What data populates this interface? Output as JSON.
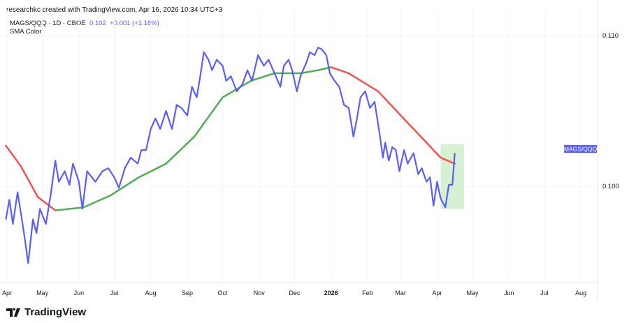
{
  "credit": "researchkc created with TradingView.com, Apr 16, 2026 10:34 UTC+3",
  "legend": {
    "symbol": "MAGS/QQQ · 1D · CBOE",
    "last": "0.102",
    "change": "+0.001 (+1.18%)",
    "indicator": "SMA Color"
  },
  "price_tag": "MAGS/QQQ",
  "brand": "TradingView",
  "colors": {
    "price": "#5b5ff5",
    "sma_up": "#4caf50",
    "sma_down": "#f05350",
    "highlight": "#d7f0d3"
  },
  "chart_data": {
    "type": "line",
    "title": "",
    "y_ticks": [
      "0.110",
      "0.100"
    ],
    "x_ticks": [
      "Apr",
      "May",
      "Jun",
      "Jul",
      "Aug",
      "Sep",
      "Oct",
      "Nov",
      "Dec",
      "2026",
      "Feb",
      "Mar",
      "Apr",
      "May",
      "Jun",
      "Jul",
      "Aug"
    ],
    "xlim": [
      "2025-03-30",
      "2026-08-20"
    ],
    "ylim": [
      0.0937,
      0.1116
    ],
    "grid": true,
    "series": [
      {
        "name": "MAGS/QQQ",
        "color": "#5b5ff5",
        "points": [
          [
            "2025-03-31",
            0.0978
          ],
          [
            "2025-04-03",
            0.0991
          ],
          [
            "2025-04-06",
            0.0975
          ],
          [
            "2025-04-10",
            0.0996
          ],
          [
            "2025-04-15",
            0.0971
          ],
          [
            "2025-04-19",
            0.0949
          ],
          [
            "2025-04-23",
            0.0978
          ],
          [
            "2025-04-26",
            0.0969
          ],
          [
            "2025-04-29",
            0.0985
          ],
          [
            "2025-05-04",
            0.0975
          ],
          [
            "2025-05-08",
            0.0994
          ],
          [
            "2025-05-12",
            0.1017
          ],
          [
            "2025-05-15",
            0.1003
          ],
          [
            "2025-05-20",
            0.101
          ],
          [
            "2025-05-24",
            0.1001
          ],
          [
            "2025-05-27",
            0.1015
          ],
          [
            "2025-06-01",
            0.1003
          ],
          [
            "2025-06-04",
            0.0985
          ],
          [
            "2025-06-08",
            0.101
          ],
          [
            "2025-06-15",
            0.1003
          ],
          [
            "2025-06-21",
            0.101
          ],
          [
            "2025-06-26",
            0.1012
          ],
          [
            "2025-07-01",
            0.1006
          ],
          [
            "2025-07-05",
            0.0999
          ],
          [
            "2025-07-10",
            0.1012
          ],
          [
            "2025-07-15",
            0.1019
          ],
          [
            "2025-07-21",
            0.1015
          ],
          [
            "2025-07-24",
            0.1024
          ],
          [
            "2025-07-28",
            0.1024
          ],
          [
            "2025-08-01",
            0.1038
          ],
          [
            "2025-08-05",
            0.1045
          ],
          [
            "2025-08-09",
            0.1038
          ],
          [
            "2025-08-14",
            0.105
          ],
          [
            "2025-08-19",
            0.1038
          ],
          [
            "2025-08-23",
            0.1054
          ],
          [
            "2025-08-27",
            0.1052
          ],
          [
            "2025-09-01",
            0.1047
          ],
          [
            "2025-09-05",
            0.1066
          ],
          [
            "2025-09-09",
            0.1059
          ],
          [
            "2025-09-12",
            0.1073
          ],
          [
            "2025-09-15",
            0.1089
          ],
          [
            "2025-09-19",
            0.1084
          ],
          [
            "2025-09-22",
            0.1077
          ],
          [
            "2025-09-26",
            0.1084
          ],
          [
            "2025-10-01",
            0.108
          ],
          [
            "2025-10-04",
            0.107
          ],
          [
            "2025-10-08",
            0.1073
          ],
          [
            "2025-10-13",
            0.1063
          ],
          [
            "2025-10-18",
            0.1068
          ],
          [
            "2025-10-22",
            0.1077
          ],
          [
            "2025-10-26",
            0.107
          ],
          [
            "2025-10-31",
            0.1087
          ],
          [
            "2025-11-05",
            0.108
          ],
          [
            "2025-11-09",
            0.1084
          ],
          [
            "2025-11-14",
            0.1075
          ],
          [
            "2025-11-19",
            0.1066
          ],
          [
            "2025-11-22",
            0.108
          ],
          [
            "2025-11-26",
            0.1084
          ],
          [
            "2025-11-29",
            0.1077
          ],
          [
            "2025-12-03",
            0.1063
          ],
          [
            "2025-12-06",
            0.1073
          ],
          [
            "2025-12-11",
            0.1082
          ],
          [
            "2025-12-14",
            0.1089
          ],
          [
            "2025-12-18",
            0.1087
          ],
          [
            "2025-12-21",
            0.1092
          ],
          [
            "2025-12-24",
            0.1091
          ],
          [
            "2025-12-28",
            0.1087
          ],
          [
            "2025-12-31",
            0.1075
          ],
          [
            "2026-01-04",
            0.107
          ],
          [
            "2026-01-08",
            0.1066
          ],
          [
            "2026-01-12",
            0.1054
          ],
          [
            "2026-01-16",
            0.1052
          ],
          [
            "2026-01-20",
            0.1033
          ],
          [
            "2026-01-23",
            0.1045
          ],
          [
            "2026-01-26",
            0.1059
          ],
          [
            "2026-01-30",
            0.1063
          ],
          [
            "2026-02-03",
            0.1052
          ],
          [
            "2026-02-07",
            0.1056
          ],
          [
            "2026-02-11",
            0.1036
          ],
          [
            "2026-02-14",
            0.1019
          ],
          [
            "2026-02-16",
            0.1029
          ],
          [
            "2026-02-19",
            0.1017
          ],
          [
            "2026-02-22",
            0.1026
          ],
          [
            "2026-02-25",
            0.1024
          ],
          [
            "2026-02-28",
            0.101
          ],
          [
            "2026-03-04",
            0.1024
          ],
          [
            "2026-03-07",
            0.1015
          ],
          [
            "2026-03-12",
            0.1022
          ],
          [
            "2026-03-16",
            0.1008
          ],
          [
            "2026-03-19",
            0.1012
          ],
          [
            "2026-03-23",
            0.1003
          ],
          [
            "2026-03-26",
            0.1006
          ],
          [
            "2026-03-29",
            0.0987
          ],
          [
            "2026-04-01",
            0.1003
          ],
          [
            "2026-04-04",
            0.0992
          ],
          [
            "2026-04-08",
            0.0986
          ],
          [
            "2026-04-11",
            0.1001
          ],
          [
            "2026-04-14",
            0.1001
          ],
          [
            "2026-04-16",
            0.1022
          ]
        ]
      },
      {
        "name": "SMA Color",
        "points": [
          [
            "2025-03-31",
            0.1027
          ],
          [
            "2025-04-13",
            0.1013
          ],
          [
            "2025-04-27",
            0.0993
          ],
          [
            "2025-05-12",
            0.0984
          ],
          [
            "2025-06-05",
            0.0986
          ],
          [
            "2025-06-28",
            0.0994
          ],
          [
            "2025-07-22",
            0.1006
          ],
          [
            "2025-08-14",
            0.1015
          ],
          [
            "2025-09-07",
            0.1033
          ],
          [
            "2025-10-01",
            0.1059
          ],
          [
            "2025-10-25",
            0.107
          ],
          [
            "2025-11-14",
            0.1075
          ],
          [
            "2025-12-06",
            0.1075
          ],
          [
            "2025-12-21",
            0.1077
          ],
          [
            "2026-01-01",
            0.1079
          ],
          [
            "2026-01-16",
            0.1075
          ],
          [
            "2026-02-10",
            0.1063
          ],
          [
            "2026-03-06",
            0.1043
          ],
          [
            "2026-03-23",
            0.1029
          ],
          [
            "2026-04-04",
            0.1019
          ],
          [
            "2026-04-16",
            0.1015
          ]
        ],
        "rising_range": [
          "2025-05-12",
          "2026-01-01"
        ]
      }
    ],
    "highlight": {
      "from": "2026-04-04",
      "to": "2026-04-24",
      "low": 0.0985,
      "high": 0.1028
    }
  }
}
